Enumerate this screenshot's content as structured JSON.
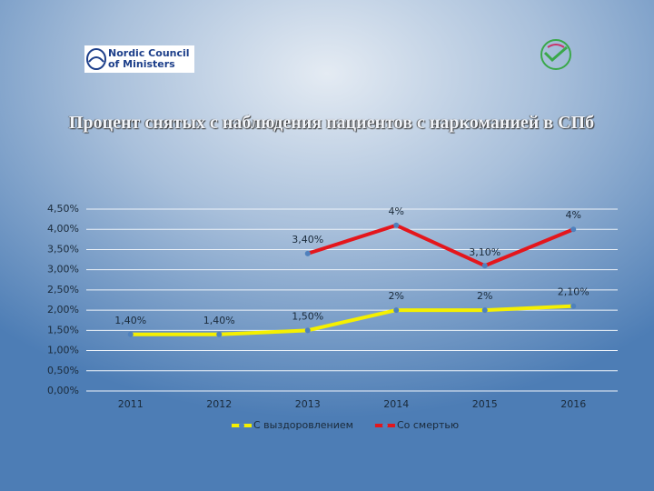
{
  "header": {
    "logo_text": [
      "Nordic Council",
      "of Ministers"
    ]
  },
  "chart_data": {
    "type": "line",
    "title": "Процент  снятых с наблюдения пациентов с наркоманией в СПб",
    "categories": [
      "2011",
      "2012",
      "2013",
      "2014",
      "2015",
      "2016"
    ],
    "series": [
      {
        "name": "С выздоровлением",
        "color": "#f5f000",
        "values": [
          1.4,
          1.4,
          1.5,
          2,
          2,
          2.1
        ],
        "value_labels": [
          "1,40%",
          "1,40%",
          "1,50%",
          "2%",
          "2%",
          "2,10%"
        ]
      },
      {
        "name": "Со смертью",
        "color": "#e4161c",
        "values": [
          null,
          null,
          3.4,
          4.1,
          3.1,
          4
        ],
        "value_labels": [
          null,
          null,
          "3,40%",
          "4%",
          "3,10%",
          "4%"
        ]
      }
    ],
    "ylim": [
      0,
      4.5
    ],
    "yticks": [
      {
        "value": 0,
        "label": "0,00%"
      },
      {
        "value": 0.5,
        "label": "0,50%"
      },
      {
        "value": 1,
        "label": "1,00%"
      },
      {
        "value": 1.5,
        "label": "1,50%"
      },
      {
        "value": 2,
        "label": "2,00%"
      },
      {
        "value": 2.5,
        "label": "2,50%"
      },
      {
        "value": 3,
        "label": "3,00%"
      },
      {
        "value": 3.5,
        "label": "3,50%"
      },
      {
        "value": 4,
        "label": "4,00%"
      },
      {
        "value": 4.5,
        "label": "4,50%"
      }
    ],
    "grid": true,
    "legend": "bottom",
    "marker_color": "#4f81bd"
  }
}
